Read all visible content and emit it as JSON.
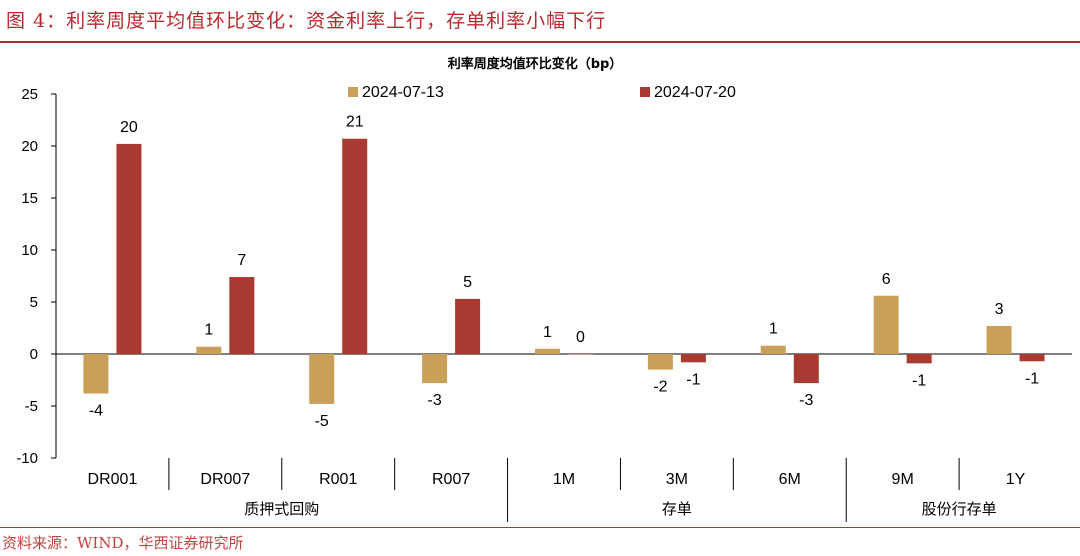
{
  "header": {
    "figure_title": "图 4：利率周度平均值环比变化：资金利率上行，存单利率小幅下行",
    "source": "资料来源：WIND，华西证券研究所"
  },
  "colors": {
    "series_1": "#c9a05a",
    "series_2": "#a83a32",
    "accent": "#b8292f"
  },
  "chart_data": {
    "type": "bar",
    "title": "利率周度均值环比变化（bp）",
    "categories": [
      "DR001",
      "DR007",
      "R001",
      "R007",
      "1M",
      "3M",
      "6M",
      "9M",
      "1Y"
    ],
    "groups": [
      {
        "label": "质押式回购",
        "categories": [
          "DR001",
          "DR007",
          "R001",
          "R007"
        ]
      },
      {
        "label": "存单",
        "categories": [
          "1M",
          "3M",
          "6M"
        ]
      },
      {
        "label": "股份行存单",
        "categories": [
          "9M",
          "1Y"
        ]
      }
    ],
    "series": [
      {
        "name": "2024-07-13",
        "values": [
          -3.8,
          0.7,
          -4.8,
          -2.8,
          0.5,
          -1.5,
          0.8,
          5.6,
          2.7
        ],
        "labels": [
          "-4",
          "1",
          "-5",
          "-3",
          "1",
          "-2",
          "1",
          "6",
          "3"
        ]
      },
      {
        "name": "2024-07-20",
        "values": [
          20.2,
          7.4,
          20.7,
          5.3,
          0.0,
          -0.8,
          -2.8,
          -0.9,
          -0.7
        ],
        "labels": [
          "20",
          "7",
          "21",
          "5",
          "0",
          "-1",
          "-3",
          "-1",
          "-1"
        ]
      }
    ],
    "ylim": [
      -10,
      25
    ],
    "yticks": [
      -10,
      -5,
      0,
      5,
      10,
      15,
      20,
      25
    ],
    "xlabel": "",
    "ylabel": "",
    "legend_position": "top-center",
    "grid": false
  }
}
